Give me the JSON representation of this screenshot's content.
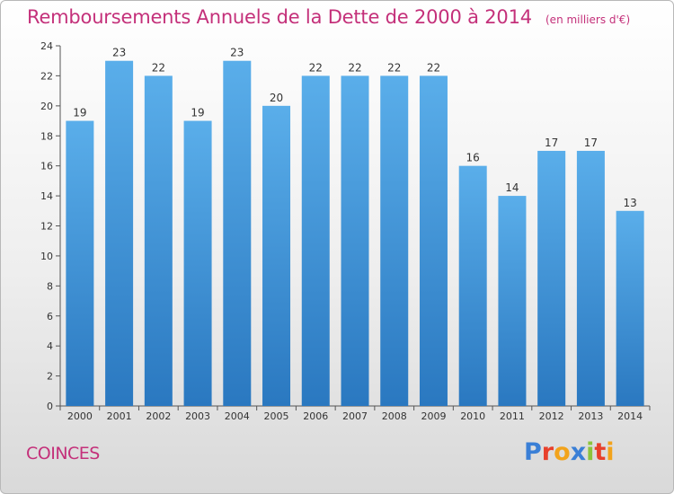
{
  "header": {
    "title": "Remboursements Annuels de la Dette de 2000 à 2014",
    "unit": "(en milliers d'€)"
  },
  "footer": {
    "commune": "COINCES",
    "logo_text": "Proxiti",
    "logo_colors": [
      "#3a7fd6",
      "#e8402b",
      "#f2a31b",
      "#3a7fd6",
      "#8cc43c",
      "#e8402b",
      "#f2a31b"
    ]
  },
  "colors": {
    "title": "#c4307a",
    "bar_light": "#5aaeea",
    "bar_dark": "#2a78c0",
    "axis": "#555555"
  },
  "chart_data": {
    "type": "bar",
    "categories": [
      "2000",
      "2001",
      "2002",
      "2003",
      "2004",
      "2005",
      "2006",
      "2007",
      "2008",
      "2009",
      "2010",
      "2011",
      "2012",
      "2013",
      "2014"
    ],
    "values": [
      19,
      23,
      22,
      19,
      23,
      20,
      22,
      22,
      22,
      22,
      16,
      14,
      17,
      17,
      13
    ],
    "yticks": [
      0,
      2,
      4,
      6,
      8,
      10,
      12,
      14,
      16,
      18,
      20,
      22,
      24
    ],
    "ylim": [
      0,
      24
    ],
    "grid": false,
    "title": "Remboursements Annuels de la Dette de 2000 à 2014",
    "xlabel": "",
    "ylabel": ""
  }
}
